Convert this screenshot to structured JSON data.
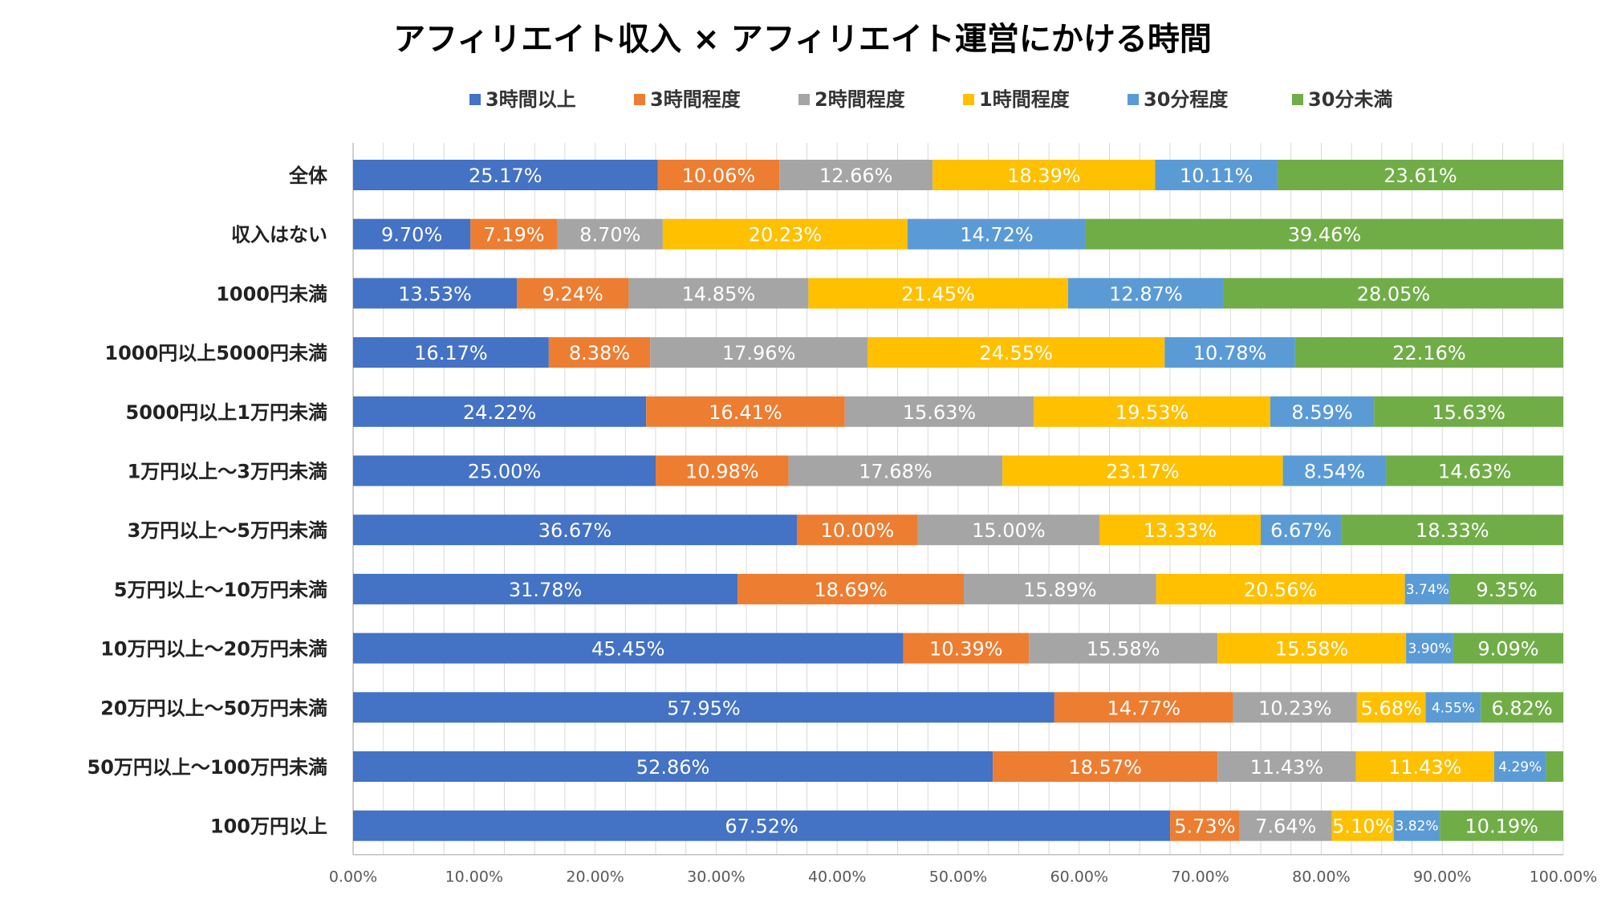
{
  "chart_data": {
    "type": "bar",
    "orientation": "horizontal",
    "stacked": "percent",
    "title": "アフィリエイト収入 × アフィリエイト運営にかける時間",
    "xlabel": "",
    "ylabel": "",
    "xlim": [
      0,
      100
    ],
    "x_ticks": [
      "0.00%",
      "10.00%",
      "20.00%",
      "30.00%",
      "40.00%",
      "50.00%",
      "60.00%",
      "70.00%",
      "80.00%",
      "90.00%",
      "100.00%"
    ],
    "grid": true,
    "legend_position": "top",
    "categories": [
      "全体",
      "収入はない",
      "1000円未満",
      "1000円以上5000円未満",
      "5000円以上1万円未満",
      "1万円以上～3万円未満",
      "3万円以上～5万円未満",
      "5万円以上～10万円未満",
      "10万円以上～20万円未満",
      "20万円以上～50万円未満",
      "50万円以上～100万円未満",
      "100万円以上"
    ],
    "series": [
      {
        "name": "3時間以上",
        "color": "#4472C4",
        "values": [
          25.17,
          9.7,
          13.53,
          16.17,
          24.22,
          25.0,
          36.67,
          31.78,
          45.45,
          57.95,
          52.86,
          67.52
        ]
      },
      {
        "name": "3時間程度",
        "color": "#ED7D31",
        "values": [
          10.06,
          7.19,
          9.24,
          8.38,
          16.41,
          10.98,
          10.0,
          18.69,
          10.39,
          14.77,
          18.57,
          5.73
        ]
      },
      {
        "name": "2時間程度",
        "color": "#A5A5A5",
        "values": [
          12.66,
          8.7,
          14.85,
          17.96,
          15.63,
          17.68,
          15.0,
          15.89,
          15.58,
          10.23,
          11.43,
          7.64
        ]
      },
      {
        "name": "1時間程度",
        "color": "#FFC000",
        "values": [
          18.39,
          20.23,
          21.45,
          24.55,
          19.53,
          23.17,
          13.33,
          20.56,
          15.58,
          5.68,
          11.43,
          5.1
        ]
      },
      {
        "name": "30分程度",
        "color": "#5B9BD5",
        "values": [
          10.11,
          14.72,
          12.87,
          10.78,
          8.59,
          8.54,
          6.67,
          3.74,
          3.9,
          4.55,
          4.29,
          3.82
        ]
      },
      {
        "name": "30分未満",
        "color": "#70AD47",
        "values": [
          23.61,
          39.46,
          28.05,
          22.16,
          15.63,
          14.63,
          18.33,
          9.35,
          9.09,
          6.82,
          1.42,
          10.19
        ]
      }
    ],
    "data_labels": [
      [
        "25.17%",
        "10.06%",
        "12.66%",
        "18.39%",
        "10.11%",
        "23.61%"
      ],
      [
        "9.70%",
        "7.19%",
        "8.70%",
        "20.23%",
        "14.72%",
        "39.46%"
      ],
      [
        "13.53%",
        "9.24%",
        "14.85%",
        "21.45%",
        "12.87%",
        "28.05%"
      ],
      [
        "16.17%",
        "8.38%",
        "17.96%",
        "24.55%",
        "10.78%",
        "22.16%"
      ],
      [
        "24.22%",
        "16.41%",
        "15.63%",
        "19.53%",
        "8.59%",
        "15.63%"
      ],
      [
        "25.00%",
        "10.98%",
        "17.68%",
        "23.17%",
        "8.54%",
        "14.63%"
      ],
      [
        "36.67%",
        "10.00%",
        "15.00%",
        "13.33%",
        "6.67%",
        "18.33%"
      ],
      [
        "31.78%",
        "18.69%",
        "15.89%",
        "20.56%",
        "3.74%",
        "9.35%"
      ],
      [
        "45.45%",
        "10.39%",
        "15.58%",
        "15.58%",
        "3.90%",
        "9.09%"
      ],
      [
        "57.95%",
        "14.77%",
        "10.23%",
        "5.68%",
        "4.55%",
        "6.82%"
      ],
      [
        "52.86%",
        "18.57%",
        "11.43%",
        "11.43%",
        "4.29%",
        ""
      ],
      [
        "67.52%",
        "5.73%",
        "7.64%",
        "5.10%",
        "3.82%",
        "10.19%"
      ]
    ]
  }
}
